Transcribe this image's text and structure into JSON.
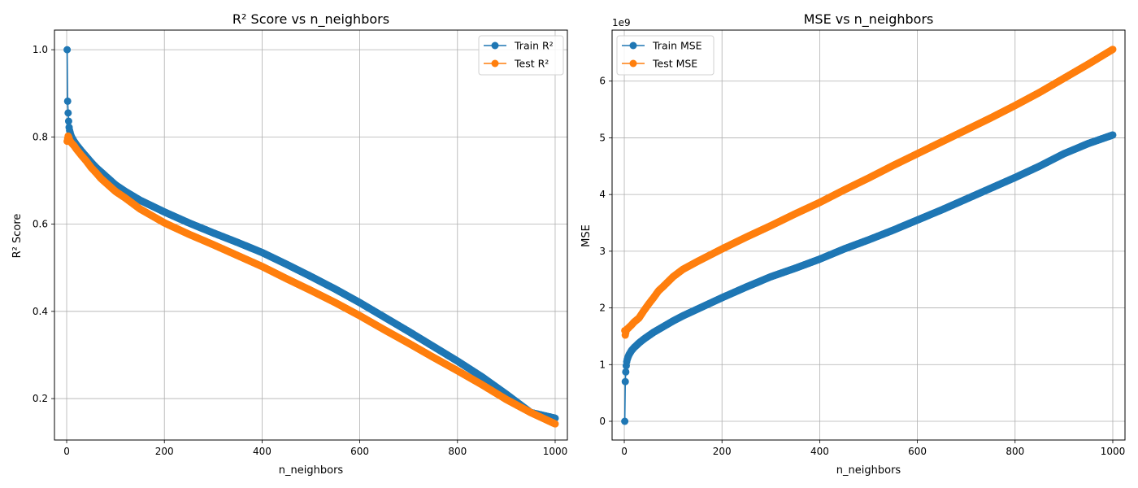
{
  "chart_data": [
    {
      "type": "line",
      "title": "R² Score vs n_neighbors",
      "xlabel": "n_neighbors",
      "ylabel": "R² Score",
      "xlim": [
        -25,
        1025
      ],
      "ylim": [
        0.105,
        1.045
      ],
      "xticks": [
        0,
        200,
        400,
        600,
        800,
        1000
      ],
      "yticks": [
        0.2,
        0.4,
        0.6,
        0.8,
        1.0
      ],
      "ytick_labels": [
        "0.2",
        "0.4",
        "0.6",
        "0.8",
        "1.0"
      ],
      "grid": true,
      "legend": "upper right",
      "series": [
        {
          "name": "Train R²",
          "color": "#1f77b4",
          "x": [
            1,
            2,
            3,
            4,
            5,
            6,
            8,
            10,
            15,
            20,
            30,
            40,
            50,
            60,
            70,
            80,
            100,
            120,
            150,
            200,
            250,
            300,
            350,
            400,
            450,
            500,
            550,
            600,
            650,
            700,
            750,
            800,
            850,
            900,
            950,
            1000
          ],
          "y": [
            1.0,
            0.882,
            0.855,
            0.836,
            0.822,
            0.815,
            0.806,
            0.8,
            0.79,
            0.782,
            0.768,
            0.755,
            0.742,
            0.73,
            0.72,
            0.71,
            0.69,
            0.675,
            0.655,
            0.628,
            0.603,
            0.58,
            0.558,
            0.535,
            0.508,
            0.48,
            0.451,
            0.42,
            0.387,
            0.354,
            0.32,
            0.286,
            0.25,
            0.21,
            0.168,
            0.155
          ]
        },
        {
          "name": "Test R²",
          "color": "#ff7f0e",
          "x": [
            1,
            2,
            3,
            4,
            5,
            6,
            8,
            10,
            15,
            20,
            30,
            40,
            50,
            60,
            70,
            80,
            100,
            120,
            150,
            200,
            250,
            300,
            350,
            400,
            450,
            500,
            550,
            600,
            650,
            700,
            750,
            800,
            850,
            900,
            950,
            1000
          ],
          "y": [
            0.79,
            0.796,
            0.802,
            0.8,
            0.797,
            0.793,
            0.789,
            0.786,
            0.78,
            0.772,
            0.758,
            0.745,
            0.73,
            0.718,
            0.705,
            0.695,
            0.675,
            0.66,
            0.635,
            0.603,
            0.577,
            0.553,
            0.528,
            0.503,
            0.475,
            0.448,
            0.42,
            0.39,
            0.358,
            0.327,
            0.295,
            0.264,
            0.232,
            0.198,
            0.168,
            0.142
          ]
        }
      ]
    },
    {
      "type": "line",
      "title": "MSE vs n_neighbors",
      "xlabel": "n_neighbors",
      "ylabel": "MSE",
      "axis_offset_text": "1e9",
      "xlim": [
        -25,
        1025
      ],
      "ylim": [
        -0.33,
        6.9
      ],
      "xticks": [
        0,
        200,
        400,
        600,
        800,
        1000
      ],
      "yticks": [
        0,
        1,
        2,
        3,
        4,
        5,
        6
      ],
      "ytick_labels": [
        "0",
        "1",
        "2",
        "3",
        "4",
        "5",
        "6"
      ],
      "grid": true,
      "legend": "upper left",
      "series": [
        {
          "name": "Train MSE",
          "color": "#1f77b4",
          "x": [
            1,
            2,
            3,
            4,
            5,
            6,
            8,
            10,
            15,
            20,
            30,
            40,
            50,
            60,
            70,
            80,
            100,
            120,
            150,
            200,
            250,
            300,
            350,
            400,
            450,
            500,
            550,
            600,
            650,
            700,
            750,
            800,
            850,
            900,
            950,
            1000
          ],
          "y": [
            0.0,
            0.7,
            0.87,
            0.98,
            1.05,
            1.09,
            1.14,
            1.18,
            1.25,
            1.3,
            1.38,
            1.45,
            1.51,
            1.57,
            1.62,
            1.67,
            1.77,
            1.86,
            1.98,
            2.18,
            2.37,
            2.55,
            2.7,
            2.86,
            3.04,
            3.2,
            3.37,
            3.55,
            3.73,
            3.92,
            4.11,
            4.3,
            4.5,
            4.72,
            4.9,
            5.05
          ]
        },
        {
          "name": "Test MSE",
          "color": "#ff7f0e",
          "x": [
            1,
            2,
            3,
            4,
            5,
            6,
            8,
            10,
            15,
            20,
            30,
            40,
            50,
            60,
            70,
            80,
            100,
            120,
            150,
            200,
            250,
            300,
            350,
            400,
            450,
            500,
            550,
            600,
            650,
            700,
            750,
            800,
            850,
            900,
            950,
            1000
          ],
          "y": [
            1.6,
            1.52,
            1.56,
            1.6,
            1.62,
            1.63,
            1.64,
            1.66,
            1.7,
            1.75,
            1.82,
            1.95,
            2.07,
            2.18,
            2.3,
            2.38,
            2.55,
            2.68,
            2.82,
            3.04,
            3.25,
            3.45,
            3.66,
            3.86,
            4.08,
            4.29,
            4.51,
            4.72,
            4.93,
            5.14,
            5.35,
            5.57,
            5.8,
            6.05,
            6.3,
            6.56
          ]
        }
      ]
    }
  ]
}
